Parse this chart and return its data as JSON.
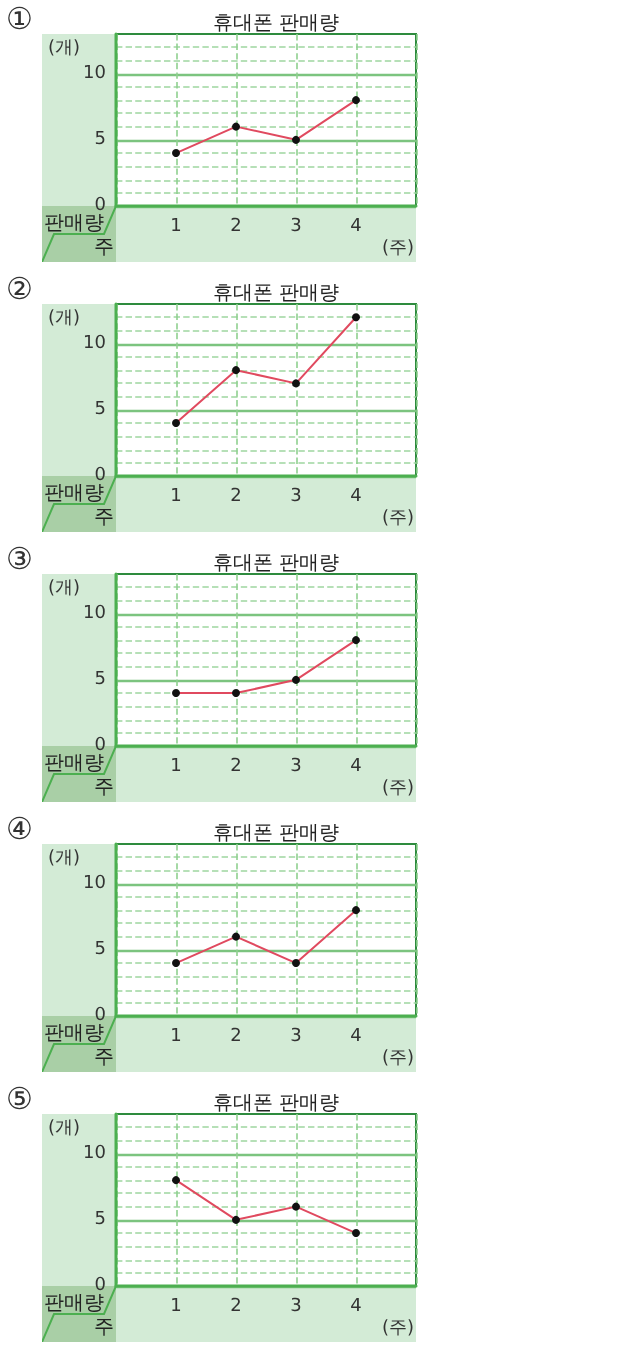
{
  "chart_data": [
    {
      "type": "line",
      "title": "휴대폰 판매량",
      "xlabel": "(주)",
      "ylabel": "(개)",
      "annotations": [
        "①",
        "판매량",
        "주"
      ],
      "x": [
        1,
        2,
        3,
        4
      ],
      "xlim": [
        0,
        5
      ],
      "xticks": [
        1,
        2,
        3,
        4
      ],
      "ylim": [
        0,
        13
      ],
      "yticks": [
        0,
        {
          "value": 1,
          "label": null
        },
        {
          "value": 2,
          "label": null
        },
        {
          "value": 3,
          "label": null
        },
        {
          "value": 4,
          "label": null
        },
        5,
        {
          "value": 6,
          "label": null
        },
        {
          "value": 7,
          "label": null
        },
        {
          "value": 8,
          "label": null
        },
        {
          "value": 9,
          "label": null
        },
        10,
        {
          "value": 11,
          "label": null
        },
        {
          "value": 12,
          "label": null
        }
      ],
      "values": [
        4,
        6,
        5,
        8
      ],
      "color": "#e04a5f",
      "marker": "circle",
      "grid": true
    },
    {
      "type": "line",
      "title": "휴대폰 판매량",
      "xlabel": "(주)",
      "ylabel": "(개)",
      "annotations": [
        "②",
        "판매량",
        "주"
      ],
      "x": [
        1,
        2,
        3,
        4
      ],
      "xlim": [
        0,
        5
      ],
      "xticks": [
        1,
        2,
        3,
        4
      ],
      "ylim": [
        0,
        13
      ],
      "yticks": [
        0,
        {
          "value": 1,
          "label": null
        },
        {
          "value": 2,
          "label": null
        },
        {
          "value": 3,
          "label": null
        },
        {
          "value": 4,
          "label": null
        },
        5,
        {
          "value": 6,
          "label": null
        },
        {
          "value": 7,
          "label": null
        },
        {
          "value": 8,
          "label": null
        },
        {
          "value": 9,
          "label": null
        },
        10,
        {
          "value": 11,
          "label": null
        },
        {
          "value": 12,
          "label": null
        }
      ],
      "values": [
        4,
        8,
        7,
        12
      ],
      "color": "#e04a5f",
      "marker": "circle",
      "grid": true
    },
    {
      "type": "line",
      "title": "휴대폰 판매량",
      "xlabel": "(주)",
      "ylabel": "(개)",
      "annotations": [
        "③",
        "판매량",
        "주"
      ],
      "x": [
        1,
        2,
        3,
        4
      ],
      "xlim": [
        0,
        5
      ],
      "xticks": [
        1,
        2,
        3,
        4
      ],
      "ylim": [
        0,
        13
      ],
      "yticks": [
        0,
        {
          "value": 1,
          "label": null
        },
        {
          "value": 2,
          "label": null
        },
        {
          "value": 3,
          "label": null
        },
        {
          "value": 4,
          "label": null
        },
        5,
        {
          "value": 6,
          "label": null
        },
        {
          "value": 7,
          "label": null
        },
        {
          "value": 8,
          "label": null
        },
        {
          "value": 9,
          "label": null
        },
        10,
        {
          "value": 11,
          "label": null
        },
        {
          "value": 12,
          "label": null
        }
      ],
      "values": [
        4,
        4,
        5,
        8
      ],
      "color": "#e04a5f",
      "marker": "circle",
      "grid": true
    },
    {
      "type": "line",
      "title": "휴대폰 판매량",
      "xlabel": "(주)",
      "ylabel": "(개)",
      "annotations": [
        "④",
        "판매량",
        "주"
      ],
      "x": [
        1,
        2,
        3,
        4
      ],
      "xlim": [
        0,
        5
      ],
      "xticks": [
        1,
        2,
        3,
        4
      ],
      "ylim": [
        0,
        13
      ],
      "yticks": [
        0,
        {
          "value": 1,
          "label": null
        },
        {
          "value": 2,
          "label": null
        },
        {
          "value": 3,
          "label": null
        },
        {
          "value": 4,
          "label": null
        },
        5,
        {
          "value": 6,
          "label": null
        },
        {
          "value": 7,
          "label": null
        },
        {
          "value": 8,
          "label": null
        },
        {
          "value": 9,
          "label": null
        },
        10,
        {
          "value": 11,
          "label": null
        },
        {
          "value": 12,
          "label": null
        }
      ],
      "values": [
        4,
        6,
        4,
        8
      ],
      "color": "#e04a5f",
      "marker": "circle",
      "grid": true
    },
    {
      "type": "line",
      "title": "휴대폰 판매량",
      "xlabel": "(주)",
      "ylabel": "(개)",
      "annotations": [
        "⑤",
        "판매량",
        "주"
      ],
      "x": [
        1,
        2,
        3,
        4
      ],
      "xlim": [
        0,
        5
      ],
      "xticks": [
        1,
        2,
        3,
        4
      ],
      "ylim": [
        0,
        13
      ],
      "yticks": [
        0,
        {
          "value": 1,
          "label": null
        },
        {
          "value": 2,
          "label": null
        },
        {
          "value": 3,
          "label": null
        },
        {
          "value": 4,
          "label": null
        },
        5,
        {
          "value": 6,
          "label": null
        },
        {
          "value": 7,
          "label": null
        },
        {
          "value": 8,
          "label": null
        },
        {
          "value": 9,
          "label": null
        },
        10,
        {
          "value": 11,
          "label": null
        },
        {
          "value": 12,
          "label": null
        }
      ],
      "values": [
        8,
        5,
        6,
        4
      ],
      "color": "#e04a5f",
      "marker": "circle",
      "grid": true
    }
  ]
}
